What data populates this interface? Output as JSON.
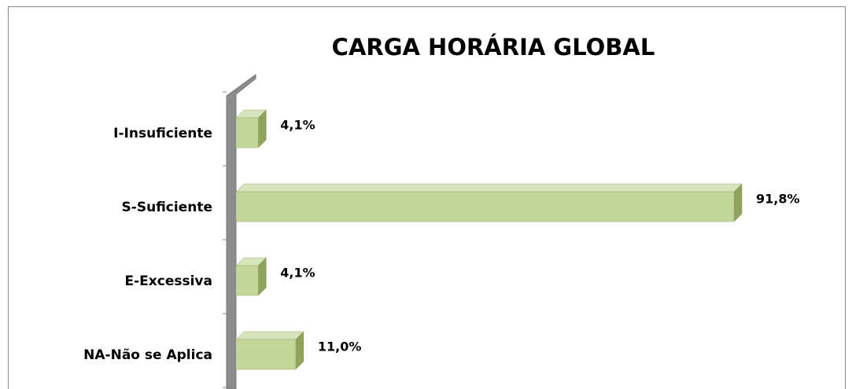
{
  "chart_data": {
    "type": "bar",
    "orientation": "horizontal",
    "title": "CARGA HORÁRIA GLOBAL",
    "categories": [
      "I-Insuficiente",
      "S-Suficiente",
      "E-Excessiva",
      "NA-Não se Aplica"
    ],
    "values": [
      4.1,
      91.8,
      4.1,
      11.0
    ],
    "value_labels": [
      "4,1%",
      "91,8%",
      "4,1%",
      "11,0%"
    ],
    "color": "#c4d79b"
  }
}
